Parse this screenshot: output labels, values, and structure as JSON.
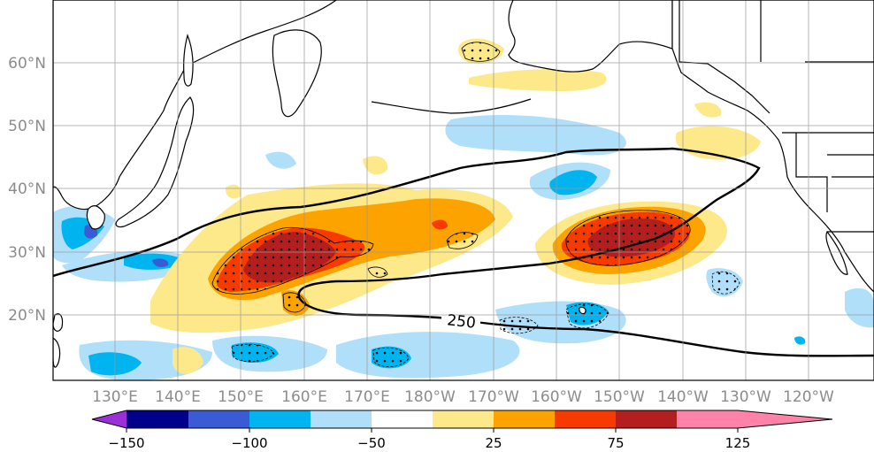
{
  "map": {
    "region": "North Pacific",
    "lon_ticks": [
      "130°E",
      "140°E",
      "150°E",
      "160°E",
      "170°E",
      "180°W",
      "170°W",
      "160°W",
      "150°W",
      "140°W",
      "130°W",
      "120°W"
    ],
    "lat_ticks": [
      "60°N",
      "50°N",
      "40°N",
      "30°N",
      "20°N"
    ],
    "contour_label": "250",
    "land_color": "#ffffff",
    "coast_color": "#000000"
  },
  "colorbar": {
    "tick_labels": [
      "−150",
      "−100",
      "−50",
      "25",
      "75",
      "125"
    ],
    "colors": [
      "#9b30d9",
      "#00008b",
      "#3a5bd6",
      "#00b4f0",
      "#b0dffa",
      "#ffffff",
      "#fde98a",
      "#fca300",
      "#f73a00",
      "#b31f1f",
      "#ff82a9"
    ]
  },
  "anomaly_colors": {
    "neg_strong": "#3a5bd6",
    "neg_mid": "#00b4f0",
    "neg_weak": "#b0dffa",
    "pos_weak": "#fde98a",
    "pos_mid": "#fca300",
    "pos_strong": "#f73a00",
    "pos_max": "#b31f1f"
  }
}
